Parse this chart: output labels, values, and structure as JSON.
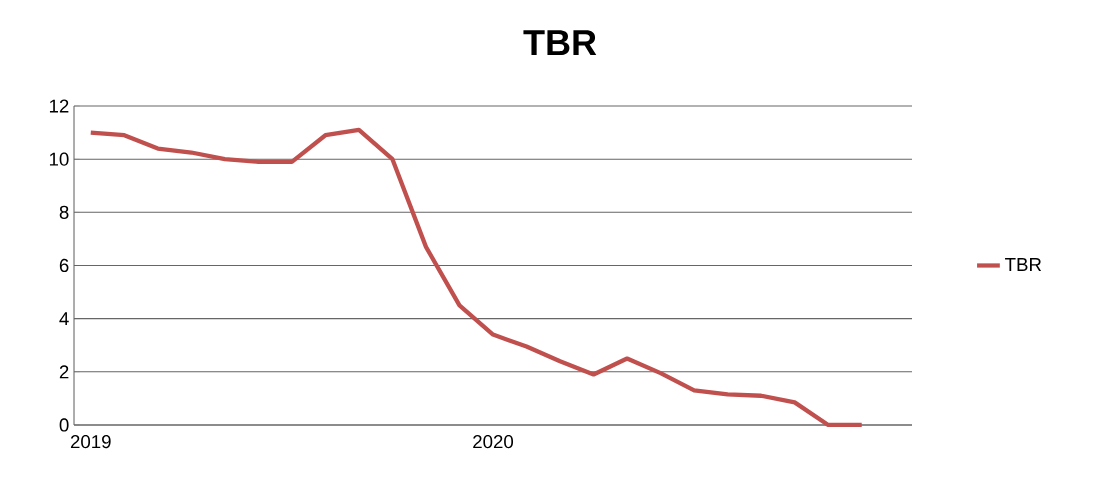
{
  "chart_data": {
    "type": "line",
    "title": "TBR",
    "categories": [
      "2019",
      null,
      null,
      null,
      null,
      null,
      null,
      null,
      null,
      null,
      null,
      null,
      "2020",
      null,
      null,
      null,
      null,
      null,
      null,
      null,
      null,
      null,
      null,
      null,
      null
    ],
    "series": [
      {
        "name": "TBR",
        "color": "#c0504d",
        "values": [
          11.0,
          10.9,
          10.4,
          10.25,
          10.0,
          9.9,
          9.9,
          10.9,
          11.1,
          10.0,
          6.7,
          4.5,
          3.4,
          2.95,
          2.4,
          1.9,
          2.5,
          1.95,
          1.3,
          1.15,
          1.1,
          0.85,
          0,
          0,
          null
        ]
      }
    ],
    "ylim": [
      0,
      12
    ],
    "yticks": [
      0,
      2,
      4,
      6,
      8,
      10,
      12
    ],
    "grid": "y",
    "legend": "right",
    "marker": "none",
    "line_style": "solid"
  }
}
